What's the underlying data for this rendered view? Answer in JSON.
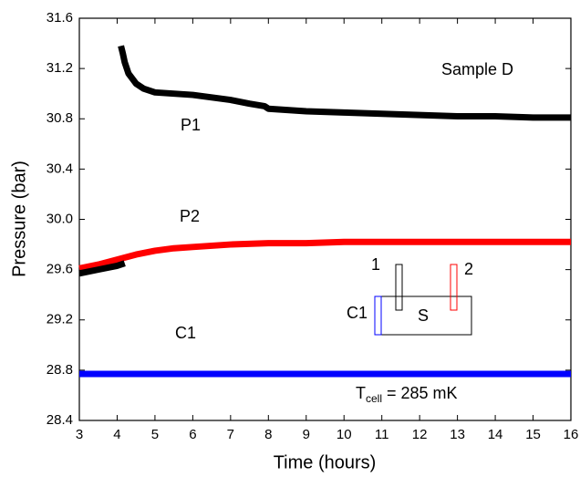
{
  "chart_data": {
    "type": "line",
    "xlabel": "Time (hours)",
    "ylabel": "Pressure (bar)",
    "xlim": [
      3,
      16
    ],
    "ylim": [
      28.4,
      31.6
    ],
    "xticks": [
      3,
      4,
      5,
      6,
      7,
      8,
      9,
      10,
      11,
      12,
      13,
      14,
      15,
      16
    ],
    "yticks": [
      28.4,
      28.8,
      29.2,
      29.6,
      {
        "value": 30,
        "label": "30.0"
      },
      30.4,
      30.8,
      31.2,
      31.6
    ],
    "series": [
      {
        "name": "P1",
        "color": "#000000",
        "x": [
          4.1,
          4.15,
          4.2,
          4.3,
          4.5,
          4.7,
          5,
          5.5,
          6,
          6.5,
          7,
          7.5,
          7.9,
          8,
          9,
          10,
          11,
          12,
          13,
          14,
          15,
          16
        ],
        "values": [
          31.38,
          31.32,
          31.25,
          31.16,
          31.08,
          31.04,
          31.01,
          31.0,
          30.99,
          30.97,
          30.95,
          30.92,
          30.9,
          30.88,
          30.86,
          30.85,
          30.84,
          30.83,
          30.82,
          30.82,
          30.81,
          30.81
        ]
      },
      {
        "name": "P2",
        "color": "#ff0000",
        "x": [
          3,
          3.5,
          4,
          4.5,
          5,
          5.5,
          6,
          7,
          8,
          9,
          10,
          12,
          14,
          16
        ],
        "values": [
          29.61,
          29.64,
          29.68,
          29.72,
          29.75,
          29.77,
          29.78,
          29.8,
          29.81,
          29.81,
          29.82,
          29.82,
          29.82,
          29.82
        ]
      },
      {
        "color": "#000000",
        "x": [
          3,
          3.5,
          4,
          4.2
        ],
        "values": [
          29.57,
          29.6,
          29.63,
          29.65
        ]
      },
      {
        "name": "C1",
        "color": "#0000ff",
        "x": [
          3,
          16
        ],
        "values": [
          28.77,
          28.77
        ]
      }
    ],
    "annotation": "Sample D",
    "temperature_label": {
      "symbol": "T",
      "subscript": "cell",
      "text": "= 285 mK"
    },
    "inset_labels": [
      "1",
      "2",
      "C1",
      "S"
    ]
  }
}
